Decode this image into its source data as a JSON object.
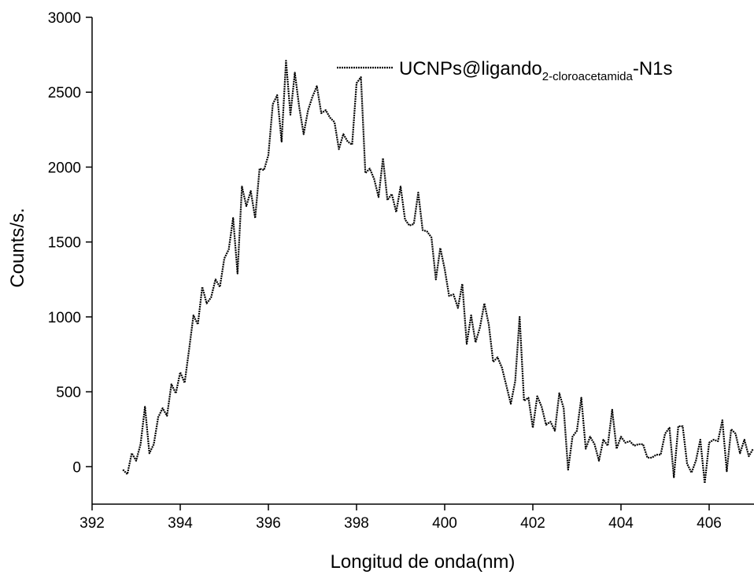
{
  "chart_data": {
    "type": "line",
    "x_label": "Longitud de onda(nm)",
    "y_label": "Counts/s.",
    "xlim": [
      392,
      407
    ],
    "ylim": [
      -250,
      3000
    ],
    "xticks": [
      392,
      394,
      396,
      398,
      400,
      402,
      404,
      406
    ],
    "yticks": [
      0,
      500,
      1000,
      1500,
      2000,
      2500,
      3000
    ],
    "grid": false,
    "legend": "upper right",
    "x": [
      392.7,
      392.8,
      392.9,
      393.0,
      393.1,
      393.2,
      393.3,
      393.4,
      393.5,
      393.6,
      393.7,
      393.8,
      393.9,
      394.0,
      394.1,
      394.2,
      394.3,
      394.4,
      394.5,
      394.6,
      394.7,
      394.8,
      394.9,
      395.0,
      395.1,
      395.2,
      395.3,
      395.4,
      395.5,
      395.6,
      395.7,
      395.8,
      395.9,
      396.0,
      396.1,
      396.2,
      396.3,
      396.4,
      396.5,
      396.6,
      396.7,
      396.8,
      396.9,
      397.0,
      397.1,
      397.2,
      397.3,
      397.4,
      397.5,
      397.6,
      397.7,
      397.8,
      397.9,
      398.0,
      398.1,
      398.2,
      398.3,
      398.4,
      398.5,
      398.6,
      398.7,
      398.8,
      398.9,
      399.0,
      399.1,
      399.2,
      399.3,
      399.4,
      399.5,
      399.6,
      399.7,
      399.8,
      399.9,
      400.0,
      400.1,
      400.2,
      400.3,
      400.4,
      400.5,
      400.6,
      400.7,
      400.8,
      400.9,
      401.0,
      401.1,
      401.2,
      401.3,
      401.4,
      401.5,
      401.6,
      401.7,
      401.8,
      401.9,
      402.0,
      402.1,
      402.2,
      402.3,
      402.4,
      402.5,
      402.6,
      402.7,
      402.8,
      402.9,
      403.0,
      403.1,
      403.2,
      403.3,
      403.4,
      403.5,
      403.6,
      403.7,
      403.8,
      403.9,
      404.0,
      404.1,
      404.2,
      404.3,
      404.4,
      404.5,
      404.6,
      404.7,
      404.8,
      404.9,
      405.0,
      405.1,
      405.2,
      405.3,
      405.4,
      405.5,
      405.6,
      405.7,
      405.8,
      405.9,
      406.0,
      406.1,
      406.2,
      406.3,
      406.4,
      406.5,
      406.6,
      406.7,
      406.8,
      406.9,
      407.0
    ],
    "series": [
      {
        "name_parts": [
          "UCNPs@ligando",
          "2-cloroacetamida",
          "-N1s"
        ],
        "color": "#000000",
        "values": [
          -20,
          -50,
          90,
          40,
          150,
          400,
          90,
          150,
          330,
          390,
          340,
          550,
          490,
          630,
          560,
          780,
          1010,
          950,
          1200,
          1090,
          1130,
          1250,
          1200,
          1390,
          1450,
          1660,
          1290,
          1870,
          1740,
          1840,
          1660,
          1990,
          1980,
          2080,
          2420,
          2480,
          2170,
          2710,
          2350,
          2630,
          2400,
          2220,
          2380,
          2470,
          2540,
          2360,
          2380,
          2330,
          2300,
          2120,
          2220,
          2170,
          2150,
          2560,
          2600,
          1960,
          1990,
          1920,
          1800,
          2060,
          1780,
          1820,
          1700,
          1870,
          1650,
          1610,
          1620,
          1830,
          1580,
          1570,
          1530,
          1250,
          1460,
          1320,
          1140,
          1150,
          1060,
          1220,
          820,
          1010,
          830,
          930,
          1090,
          950,
          700,
          730,
          660,
          540,
          420,
          570,
          1000,
          440,
          460,
          260,
          470,
          400,
          280,
          300,
          240,
          490,
          390,
          -20,
          200,
          240,
          460,
          120,
          200,
          150,
          40,
          180,
          140,
          380,
          120,
          200,
          160,
          170,
          140,
          150,
          150,
          60,
          60,
          80,
          80,
          220,
          260,
          -70,
          270,
          270,
          20,
          -40,
          40,
          180,
          -110,
          160,
          180,
          170,
          310,
          -30,
          250,
          220,
          90,
          180,
          70,
          120
        ]
      }
    ]
  }
}
